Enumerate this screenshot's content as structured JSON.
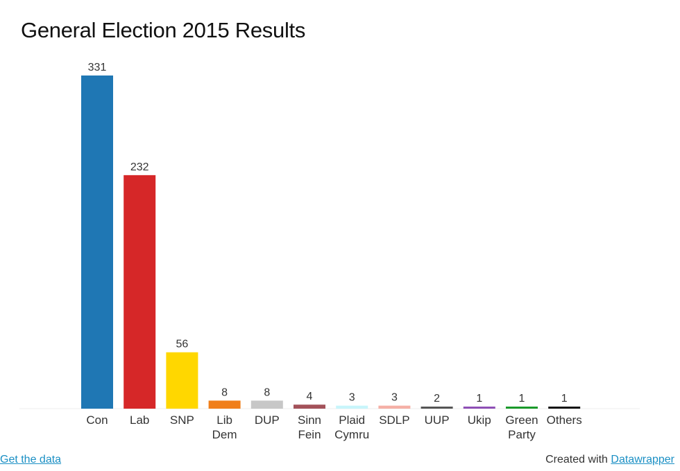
{
  "title": "General Election 2015 Results",
  "footer": {
    "get_data_link": "Get the data",
    "created_with": "Created with",
    "datawrapper_link": "Datawrapper"
  },
  "chart_data": {
    "type": "bar",
    "title": "General Election 2015 Results",
    "xlabel": "",
    "ylabel": "",
    "ylim": [
      0,
      331
    ],
    "grid": false,
    "categories": [
      [
        "Con"
      ],
      [
        "Lab"
      ],
      [
        "SNP"
      ],
      [
        "Lib",
        "Dem"
      ],
      [
        "DUP"
      ],
      [
        "Sinn",
        "Fein"
      ],
      [
        "Plaid",
        "Cymru"
      ],
      [
        "SDLP"
      ],
      [
        "UUP"
      ],
      [
        "Ukip"
      ],
      [
        "Green",
        "Party"
      ],
      [
        "Others"
      ]
    ],
    "values": [
      331,
      232,
      56,
      8,
      8,
      4,
      3,
      3,
      2,
      1,
      1,
      1
    ],
    "colors": [
      "#1f77b4",
      "#d62728",
      "#ffd700",
      "#f07f1a",
      "#c7c7c7",
      "#a3525a",
      "#c8f5fb",
      "#f5b0a6",
      "#555555",
      "#8e4fb5",
      "#1a9a2a",
      "#111111"
    ]
  }
}
